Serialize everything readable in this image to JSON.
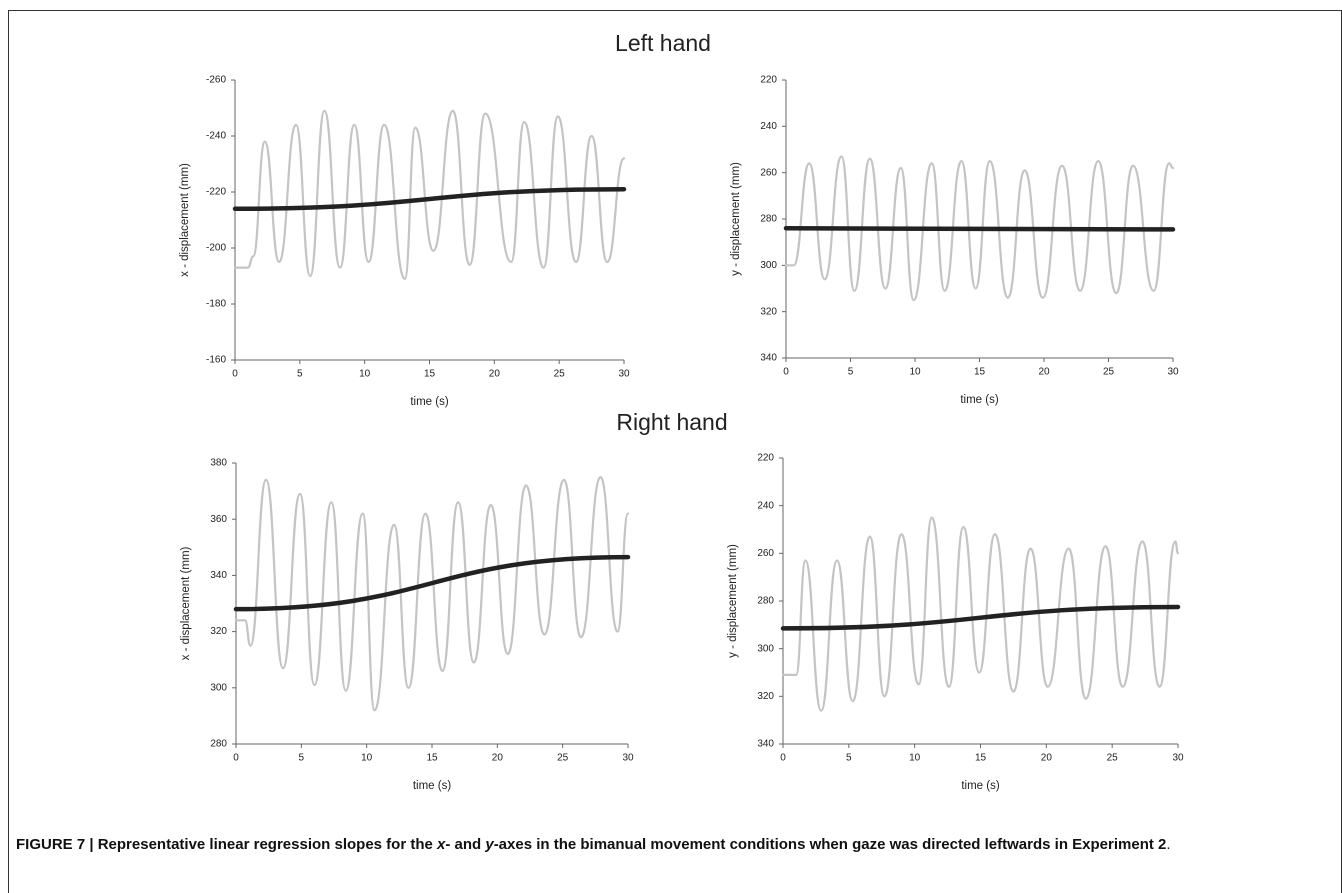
{
  "headings": [
    "Left hand",
    "Right hand"
  ],
  "chart_data": [
    {
      "type": "line",
      "xlabel": "time (s)",
      "ylabel": "x - displacement (mm)",
      "xlim": [
        0,
        30
      ],
      "xticks": [
        0,
        5,
        10,
        15,
        20,
        25,
        30
      ],
      "ylim": [
        -160,
        -260
      ],
      "yticks": [
        -260,
        -240,
        -220,
        -200,
        -180,
        -160
      ],
      "series": [
        {
          "color": "#c4c4c4",
          "x": [
            0,
            1.0,
            1.4,
            2.3,
            3.4,
            4.7,
            5.8,
            6.9,
            8.1,
            9.2,
            10.3,
            11.5,
            13.1,
            13.9,
            15.3,
            16.8,
            18.1,
            19.3,
            21.3,
            22.3,
            23.8,
            24.9,
            26.3,
            27.5,
            28.7,
            30
          ],
          "values": [
            -193,
            -193,
            -197,
            -238,
            -195,
            -244,
            -190,
            -249,
            -193,
            -244,
            -195,
            -244,
            -189,
            -243,
            -199,
            -249,
            -194,
            -248,
            -195,
            -245,
            -193,
            -247,
            -195,
            -240,
            -195,
            -232
          ]
        },
        {
          "color": "#222222",
          "x": [
            0,
            30
          ],
          "values": [
            -214,
            -221
          ]
        }
      ]
    },
    {
      "type": "line",
      "xlabel": "time (s)",
      "ylabel": "y - displacement (mm)",
      "xlim": [
        0,
        30
      ],
      "xticks": [
        0,
        5,
        10,
        15,
        20,
        25,
        30
      ],
      "ylim": [
        340,
        220
      ],
      "yticks": [
        220,
        240,
        260,
        280,
        300,
        320,
        340
      ],
      "series": [
        {
          "color": "#c4c4c4",
          "x": [
            0,
            0.6,
            1.8,
            3.0,
            4.3,
            5.3,
            6.5,
            7.7,
            8.9,
            9.9,
            11.3,
            12.3,
            13.6,
            14.7,
            15.8,
            17.2,
            18.5,
            19.9,
            21.4,
            22.8,
            24.2,
            25.6,
            26.9,
            28.5,
            29.7,
            30
          ],
          "values": [
            300,
            300,
            256,
            306,
            253,
            311,
            254,
            310,
            258,
            315,
            256,
            311,
            255,
            310,
            255,
            314,
            259,
            314,
            257,
            311,
            255,
            312,
            257,
            311,
            256,
            258
          ]
        },
        {
          "color": "#222222",
          "x": [
            0,
            30
          ],
          "values": [
            284,
            284.5
          ]
        }
      ]
    },
    {
      "type": "line",
      "xlabel": "time (s)",
      "ylabel": "x - displacement (mm)",
      "xlim": [
        0,
        30
      ],
      "xticks": [
        0,
        5,
        10,
        15,
        20,
        25,
        30
      ],
      "ylim": [
        280,
        380
      ],
      "yticks": [
        280,
        300,
        320,
        340,
        360,
        380
      ],
      "series": [
        {
          "color": "#c4c4c4",
          "x": [
            0,
            0.7,
            1.1,
            2.3,
            3.6,
            4.9,
            6.0,
            7.3,
            8.4,
            9.7,
            10.6,
            12.1,
            13.2,
            14.5,
            15.8,
            17.0,
            18.2,
            19.5,
            20.8,
            22.2,
            23.6,
            25.1,
            26.4,
            27.9,
            29.2,
            30
          ],
          "values": [
            324,
            324,
            315,
            374,
            307,
            369,
            301,
            366,
            299,
            362,
            292,
            358,
            300,
            362,
            306,
            366,
            309,
            365,
            312,
            372,
            319,
            374,
            318,
            375,
            320,
            362
          ]
        },
        {
          "color": "#222222",
          "x": [
            0,
            30
          ],
          "values": [
            328,
            346.5
          ]
        }
      ]
    },
    {
      "type": "line",
      "xlabel": "time (s)",
      "ylabel": "y - displacement (mm)",
      "xlim": [
        0,
        30
      ],
      "xticks": [
        0,
        5,
        10,
        15,
        20,
        25,
        30
      ],
      "ylim": [
        340,
        220
      ],
      "yticks": [
        220,
        240,
        260,
        280,
        300,
        320,
        340
      ],
      "series": [
        {
          "color": "#c4c4c4",
          "x": [
            0,
            1.0,
            1.7,
            2.9,
            4.1,
            5.3,
            6.6,
            7.7,
            9.0,
            10.3,
            11.3,
            12.6,
            13.7,
            14.9,
            16.1,
            17.5,
            18.8,
            20.1,
            21.7,
            23.0,
            24.5,
            25.8,
            27.3,
            28.6,
            29.8,
            30
          ],
          "values": [
            311,
            311,
            263,
            326,
            263,
            322,
            253,
            320,
            252,
            315,
            245,
            316,
            249,
            310,
            252,
            318,
            258,
            316,
            258,
            321,
            257,
            316,
            255,
            316,
            255,
            260
          ]
        },
        {
          "color": "#222222",
          "x": [
            0,
            30
          ],
          "values": [
            291.5,
            282.5
          ]
        }
      ]
    }
  ],
  "caption": {
    "parts": [
      "FIGURE 7 | Representative linear regression slopes for the ",
      "x",
      "- and ",
      "y",
      "-axes in the bimanual movement conditions when gaze was directed leftwards in Experiment 2",
      "."
    ]
  }
}
